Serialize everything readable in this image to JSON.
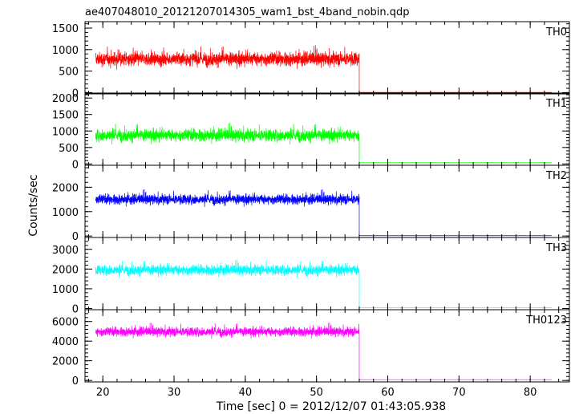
{
  "chart_data": {
    "type": "line",
    "title": "ae407048010_20121207014305_wam1_bst_4band_nobin.qdp",
    "xlabel": "Time [sec] 0 = 2012/12/07 01:43:05.938",
    "ylabel": "Counts/sec",
    "xlim": [
      17.5,
      85.5
    ],
    "x_ticks": [
      20,
      30,
      40,
      50,
      60,
      70,
      80
    ],
    "x_tick_labels": [
      "20",
      "30",
      "40",
      "50",
      "60",
      "70",
      "80"
    ],
    "active_interval": [
      19,
      56
    ],
    "tail_interval": [
      56,
      83
    ],
    "grid": false,
    "legend": "none",
    "panels": [
      {
        "name": "TH0",
        "color": "#ff0000",
        "ylim": [
          -30,
          1650
        ],
        "ticks": [
          0,
          500,
          1000,
          1500
        ],
        "tick_labels": [
          "0",
          "500",
          "1000",
          "1500"
        ],
        "mean": 780,
        "spread": 260,
        "tail_level": 5
      },
      {
        "name": "TH1",
        "color": "#00ff00",
        "ylim": [
          -40,
          2150
        ],
        "ticks": [
          0,
          500,
          1000,
          1500,
          2000
        ],
        "tick_labels": [
          "0",
          "500",
          "1000",
          "1500",
          "2000"
        ],
        "mean": 870,
        "spread": 300,
        "tail_level": 40
      },
      {
        "name": "TH2",
        "color": "#0000ff",
        "ylim": [
          -60,
          2900
        ],
        "ticks": [
          0,
          1000,
          2000
        ],
        "tick_labels": [
          "0",
          "1000",
          "2000"
        ],
        "mean": 1500,
        "spread": 330,
        "tail_level": 15
      },
      {
        "name": "TH3",
        "color": "#00ffff",
        "ylim": [
          -60,
          3600
        ],
        "ticks": [
          0,
          1000,
          2000,
          3000
        ],
        "tick_labels": [
          "0",
          "1000",
          "2000",
          "3000"
        ],
        "mean": 1950,
        "spread": 420,
        "tail_level": 40
      },
      {
        "name": "TH0123",
        "color": "#ff00ff",
        "ylim": [
          -150,
          7200
        ],
        "ticks": [
          0,
          2000,
          4000,
          6000
        ],
        "tick_labels": [
          "0",
          "2000",
          "4000",
          "6000"
        ],
        "mean": 4950,
        "spread": 750,
        "tail_level": 80
      }
    ]
  }
}
